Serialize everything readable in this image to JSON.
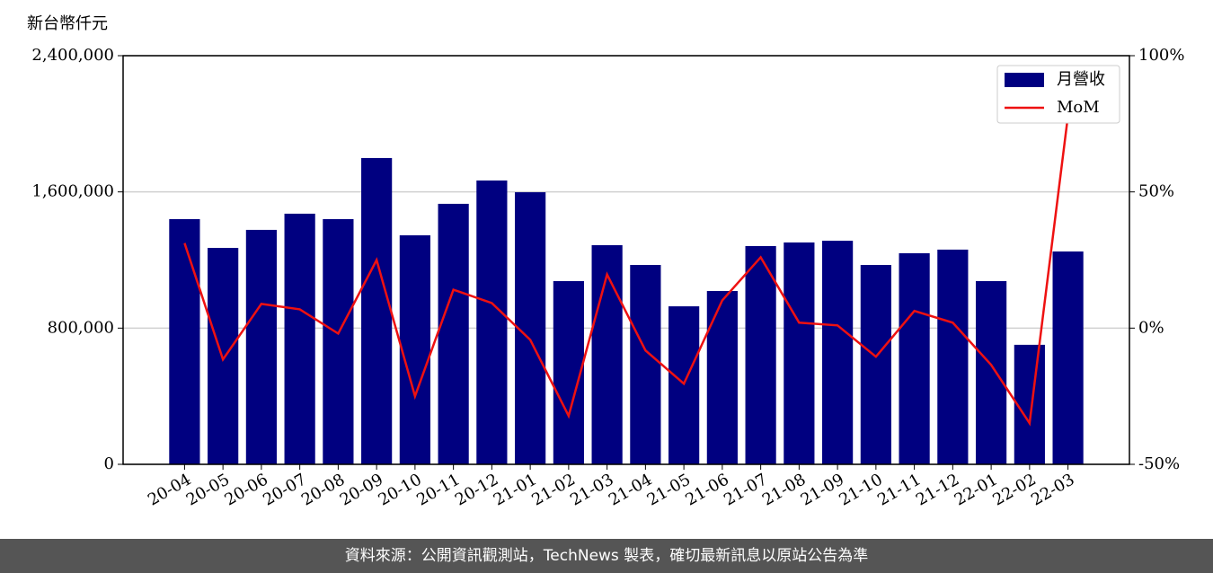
{
  "chart_data": {
    "type": "bar-line",
    "y_label": "新台幣仟元",
    "categories": [
      "20-04",
      "20-05",
      "20-06",
      "20-07",
      "20-08",
      "20-09",
      "20-10",
      "20-11",
      "20-12",
      "21-01",
      "21-02",
      "21-03",
      "21-04",
      "21-05",
      "21-06",
      "21-07",
      "21-08",
      "21-09",
      "21-10",
      "21-11",
      "21-12",
      "22-01",
      "22-02",
      "22-03"
    ],
    "series": [
      {
        "name": "月營收",
        "type": "bar",
        "color": "#000080",
        "values": [
          1440000,
          1271000,
          1377000,
          1472000,
          1440000,
          1799000,
          1345000,
          1530000,
          1667000,
          1598000,
          1076000,
          1287000,
          1171000,
          928000,
          1018000,
          1282000,
          1303000,
          1313000,
          1171000,
          1240000,
          1261000,
          1076000,
          702000,
          1250000
        ]
      },
      {
        "name": "MoM",
        "type": "line",
        "axis": "y2",
        "color": "#ee1111",
        "values": [
          31.2,
          -11.5,
          8.9,
          6.9,
          -2.0,
          25.0,
          -25.0,
          14.1,
          9.2,
          -4.3,
          -32.2,
          19.7,
          -8.2,
          -20.4,
          10.2,
          26.0,
          2.0,
          1.0,
          -10.5,
          6.3,
          2.0,
          -13.5,
          -34.9,
          78.0
        ]
      }
    ],
    "ylim": [
      0,
      2400000
    ],
    "yticks": [
      {
        "value": 0,
        "label": "0"
      },
      {
        "value": 800000,
        "label": "800,000"
      },
      {
        "value": 1600000,
        "label": "1,600,000"
      },
      {
        "value": 2400000,
        "label": "2,400,000"
      }
    ],
    "y2lim": [
      -50,
      100
    ],
    "y2ticks": [
      {
        "value": -50,
        "label": "-50%"
      },
      {
        "value": 0,
        "label": "0%"
      },
      {
        "value": 50,
        "label": "50%"
      },
      {
        "value": 100,
        "label": "100%"
      }
    ],
    "grid": true,
    "legend": "upper right",
    "source": "資料來源：公開資訊觀測站，TechNews 製表，確切最新訊息以原站公告為準"
  }
}
